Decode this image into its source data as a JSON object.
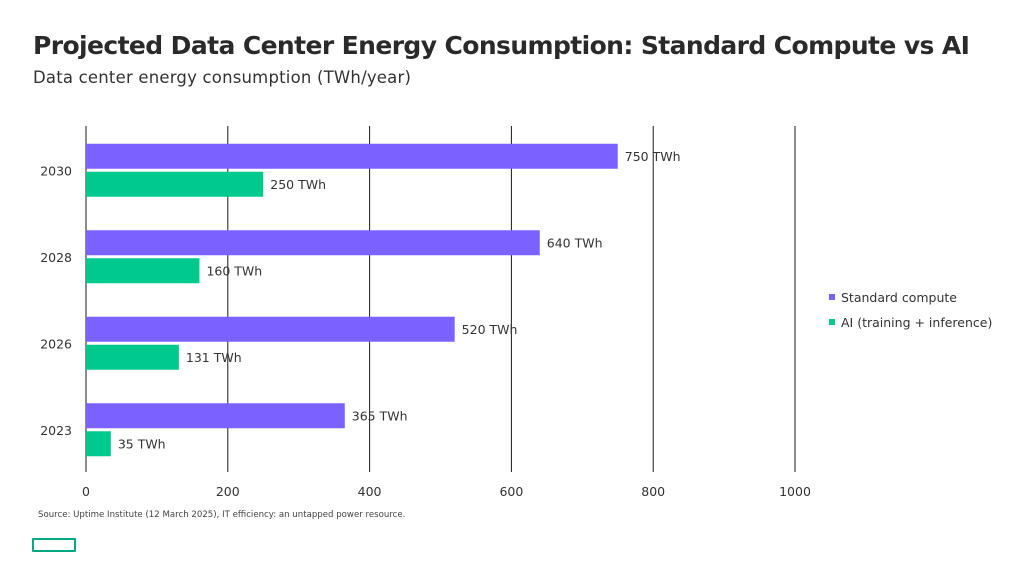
{
  "title": "Projected Data Center Energy Consumption: Standard Compute vs AI",
  "subtitle": "Data center energy consumption (TWh/year)",
  "source": "Source: Uptime Institute (12 March 2025), IT efficiency: an untapped power resource.",
  "colors": {
    "standard": "#7b61ff",
    "ai": "#00c98d",
    "grid": "#1a1a1a",
    "brand": "#01a982"
  },
  "chart_data": {
    "type": "bar",
    "orientation": "horizontal",
    "categories": [
      "2030",
      "2028",
      "2026",
      "2023"
    ],
    "series": [
      {
        "name": "Standard compute",
        "values": [
          750,
          640,
          520,
          365
        ],
        "labels": [
          "750 TWh",
          "640 TWh",
          "520 TWh",
          "365 TWh"
        ]
      },
      {
        "name": "AI (training + inference)",
        "values": [
          250,
          160,
          131,
          35
        ],
        "labels": [
          "250 TWh",
          "160 TWh",
          "131 TWh",
          "35 TWh"
        ]
      }
    ],
    "x_ticks": [
      0,
      200,
      400,
      600,
      800,
      1000
    ],
    "xlim": [
      0,
      1000
    ],
    "grid": true,
    "legend": "right"
  }
}
